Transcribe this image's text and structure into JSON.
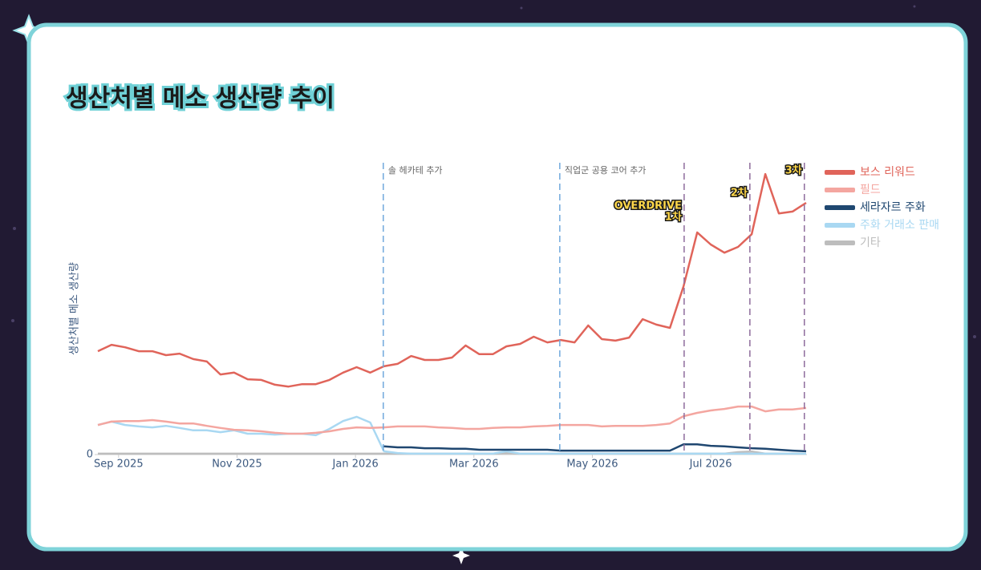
{
  "chart_data": {
    "type": "line",
    "title": "생산처별 메소 생산량 추이",
    "y_label": "생산처별 메소 생산량",
    "x": [
      -0.35,
      -0.12,
      0.11,
      0.34,
      0.57,
      0.8,
      1.03,
      1.26,
      1.49,
      1.72,
      1.95,
      2.18,
      2.41,
      2.64,
      2.87,
      3.1,
      3.33,
      3.56,
      3.79,
      4.02,
      4.25,
      4.48,
      4.71,
      4.94,
      5.17,
      5.4,
      5.63,
      5.86,
      6.09,
      6.32,
      6.55,
      6.78,
      7.01,
      7.24,
      7.47,
      7.7,
      7.93,
      8.16,
      8.39,
      8.62,
      8.85,
      9.08,
      9.31,
      9.54,
      9.77,
      10.0,
      10.23,
      10.46,
      10.69,
      10.92,
      11.15,
      11.38,
      11.61
    ],
    "xlim": [
      -0.35,
      11.61
    ],
    "xticks": [
      {
        "value": 0,
        "label": "Sep 2025"
      },
      {
        "value": 2,
        "label": "Nov 2025"
      },
      {
        "value": 4,
        "label": "Jan 2026"
      },
      {
        "value": 6,
        "label": "Mar 2026"
      },
      {
        "value": 8,
        "label": "May 2026"
      },
      {
        "value": 10,
        "label": "Jul 2026"
      }
    ],
    "ylim": [
      0,
      100
    ],
    "yticks": [
      0
    ],
    "series": [
      {
        "name": "보스 리워드",
        "color": "#e0645a",
        "values": [
          34.2,
          36.3,
          35.5,
          34.2,
          34.2,
          32.9,
          33.4,
          31.6,
          30.8,
          26.5,
          27.1,
          24.9,
          24.7,
          23.1,
          22.5,
          23.3,
          23.3,
          24.7,
          27.1,
          28.9,
          27.1,
          29.2,
          30.0,
          32.6,
          31.3,
          31.3,
          32.1,
          36.1,
          33.2,
          33.2,
          35.8,
          36.6,
          39.0,
          37.1,
          37.9,
          37.1,
          42.7,
          38.2,
          37.7,
          38.7,
          44.8,
          43.0,
          41.9,
          55.7,
          73.5,
          69.5,
          66.8,
          68.7,
          72.9,
          92.8,
          79.8,
          80.4,
          83.3
        ]
      },
      {
        "name": "필드",
        "color": "#f4a6a0",
        "values": [
          9.8,
          10.9,
          11.1,
          11.1,
          11.4,
          10.9,
          10.3,
          10.3,
          9.5,
          8.8,
          8.2,
          8.0,
          7.7,
          7.2,
          6.9,
          6.9,
          7.2,
          7.7,
          8.5,
          9.0,
          8.8,
          9.0,
          9.3,
          9.3,
          9.3,
          9.0,
          8.8,
          8.5,
          8.5,
          8.8,
          9.0,
          9.0,
          9.3,
          9.5,
          9.8,
          9.8,
          9.8,
          9.3,
          9.5,
          9.5,
          9.5,
          9.8,
          10.3,
          12.7,
          13.8,
          14.6,
          15.1,
          15.9,
          15.9,
          14.3,
          14.9,
          14.9,
          15.4
        ]
      },
      {
        "name": "세라자르 주화",
        "color": "#1f4770",
        "values": [
          null,
          null,
          null,
          null,
          null,
          null,
          null,
          null,
          null,
          null,
          null,
          null,
          null,
          null,
          null,
          null,
          null,
          null,
          null,
          null,
          null,
          2.7,
          2.4,
          2.4,
          2.1,
          2.1,
          1.9,
          1.9,
          1.6,
          1.6,
          1.6,
          1.6,
          1.6,
          1.6,
          1.3,
          1.3,
          1.3,
          1.3,
          1.3,
          1.3,
          1.3,
          1.3,
          1.3,
          3.4,
          3.4,
          2.9,
          2.7,
          2.4,
          2.1,
          1.9,
          1.6,
          1.3,
          1.1
        ]
      },
      {
        "name": "주화 거래소 판매",
        "color": "#a9d8f2",
        "values": [
          9.8,
          10.9,
          9.8,
          9.3,
          9.0,
          9.5,
          8.8,
          8.0,
          8.0,
          7.4,
          8.0,
          6.9,
          6.9,
          6.6,
          6.9,
          6.9,
          6.4,
          8.5,
          11.1,
          12.5,
          10.6,
          1.1,
          0.5,
          0.3,
          0.3,
          0.3,
          0.3,
          0.3,
          0.3,
          0.3,
          1.1,
          0.3,
          0.3,
          0.3,
          0.3,
          0.3,
          0.3,
          0.3,
          0.3,
          0.3,
          0.3,
          0.3,
          0.3,
          0.3,
          0.3,
          0.3,
          0.3,
          0.3,
          0.3,
          0.3,
          0.3,
          0.3,
          0.3
        ]
      },
      {
        "name": "기타",
        "color": "#bdbdbd",
        "values": [
          0.3,
          0.3,
          0.3,
          0.3,
          0.3,
          0.3,
          0.3,
          0.3,
          0.3,
          0.3,
          0.3,
          0.3,
          0.3,
          0.3,
          0.3,
          0.3,
          0.3,
          0.3,
          0.3,
          0.3,
          0.3,
          0.3,
          0.3,
          0.3,
          0.3,
          0.3,
          0.3,
          0.3,
          0.3,
          0.3,
          0.5,
          0.3,
          0.3,
          0.3,
          0.3,
          0.3,
          0.3,
          0.3,
          0.3,
          0.3,
          0.3,
          0.3,
          0.3,
          0.3,
          0.3,
          0.3,
          0.3,
          0.8,
          1.0,
          0.3,
          0.3,
          0.3,
          0.3
        ]
      }
    ],
    "annotations": [
      {
        "x": 4.47,
        "label": [
          "솔 헤카테 추가"
        ],
        "color": "#6fa8dc",
        "style": "note"
      },
      {
        "x": 7.45,
        "label": [
          "직업군 공용 코어 추가"
        ],
        "color": "#6fa8dc",
        "style": "note"
      },
      {
        "x": 9.55,
        "label": [
          "OVERDRIVE",
          "1차"
        ],
        "color": "#8e6c9c",
        "style": "badge"
      },
      {
        "x": 10.66,
        "label": [
          "2차"
        ],
        "color": "#8e6c9c",
        "style": "badge"
      },
      {
        "x": 11.58,
        "label": [
          "3차"
        ],
        "color": "#8e6c9c",
        "style": "badge"
      }
    ]
  }
}
